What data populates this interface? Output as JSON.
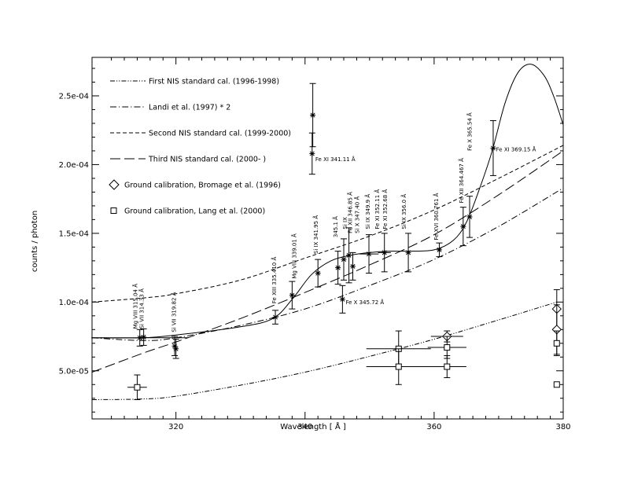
{
  "chart_data": {
    "type": "line",
    "title": "",
    "xlabel": "Wavelength [ Å ]",
    "ylabel": "counts / photon",
    "xlim": [
      307,
      380
    ],
    "ylim": [
      1.5e-05,
      0.000278
    ],
    "x_ticks": [
      {
        "value": 320,
        "label": "320"
      },
      {
        "value": 340,
        "label": "340"
      },
      {
        "value": 360,
        "label": "360"
      },
      {
        "value": 380,
        "label": "380"
      }
    ],
    "y_ticks": [
      {
        "value": 5e-05,
        "label": "5.0e-05"
      },
      {
        "value": 0.0001,
        "label": "1.0e-04"
      },
      {
        "value": 0.00015,
        "label": "1.5e-04"
      },
      {
        "value": 0.0002,
        "label": "2.0e-04"
      },
      {
        "value": 0.00025,
        "label": "2.5e-04"
      }
    ],
    "legend_position": "top-left",
    "legend": [
      {
        "label": "First NIS standard cal. (1996-1998)",
        "style": "dash-dot-dot"
      },
      {
        "label": "Landi et al. (1997) * 2",
        "style": "dash-dot"
      },
      {
        "label": "Second NIS standard cal. (1999-2000)",
        "style": "short-dash"
      },
      {
        "label": "Third NIS standard cal. (2000- )",
        "style": "long-dash"
      },
      {
        "label": "Ground calibration, Bromage et al. (1996)",
        "style": "diamond"
      },
      {
        "label": "Ground calibration, Lang et al. (2000)",
        "style": "square"
      }
    ],
    "series": [
      {
        "key": "first",
        "style": "dash-dot-dot",
        "x": [
          307,
          315,
          320,
          330,
          340,
          350,
          360,
          370,
          379
        ],
        "y": [
          2.9e-05,
          2.95e-05,
          3.15e-05,
          3.95e-05,
          4.9e-05,
          6.05e-05,
          7.3e-05,
          8.7e-05,
          0.0001
        ]
      },
      {
        "key": "landi",
        "style": "dash-dot",
        "x": [
          307,
          315,
          320,
          330,
          340,
          350,
          360,
          370,
          380
        ],
        "y": [
          7.4e-05,
          7.2e-05,
          7.4e-05,
          8.3e-05,
          9.5e-05,
          0.000112,
          0.000131,
          0.000155,
          0.000183
        ]
      },
      {
        "key": "second",
        "style": "short-dash",
        "x": [
          307,
          315,
          320,
          330,
          340,
          350,
          360,
          370,
          380
        ],
        "y": [
          0.0001,
          0.000103,
          0.000106,
          0.000116,
          0.000132,
          0.000148,
          0.000167,
          0.00019,
          0.000214
        ]
      },
      {
        "key": "third",
        "style": "long-dash",
        "x": [
          307,
          315,
          320,
          330,
          340,
          350,
          360,
          370,
          380
        ],
        "y": [
          4.9e-05,
          6.3e-05,
          7.1e-05,
          8.8e-05,
          0.000107,
          0.000127,
          0.000149,
          0.000178,
          0.00021
        ]
      },
      {
        "key": "fit",
        "style": "solid",
        "x": [
          307,
          315,
          320,
          330,
          335,
          338,
          341,
          344,
          347,
          350,
          353,
          356,
          360,
          363,
          365,
          367,
          369,
          371,
          373,
          375,
          377,
          378.5,
          380
        ],
        "y": [
          7.4e-05,
          7.4e-05,
          7.6e-05,
          8.2e-05,
          8.8e-05,
          0.000102,
          0.00012,
          0.00013,
          0.000134,
          0.000136,
          0.000137,
          0.000137,
          0.000138,
          0.000145,
          0.000158,
          0.000182,
          0.00021,
          0.000245,
          0.000267,
          0.000273,
          0.000265,
          0.00025,
          0.000229
        ]
      }
    ],
    "measurements": [
      {
        "x": 314.4,
        "y": 7.4e-05,
        "xerr": 7.5,
        "yerr": 6e-06
      },
      {
        "x": 315.0,
        "y": 7.45e-05,
        "xerr": 0,
        "yerr": 6e-06
      },
      {
        "x": 319.8,
        "y": 6.8e-05,
        "xerr": 0,
        "yerr": 7e-06
      },
      {
        "x": 320.0,
        "y": 6.6e-05,
        "xerr": 0,
        "yerr": 7e-06
      },
      {
        "x": 335.4,
        "y": 8.9e-05,
        "xerr": 0,
        "yerr": 5e-06
      },
      {
        "x": 338.0,
        "y": 0.000105,
        "xerr": 0,
        "yerr": 1e-05
      },
      {
        "x": 341.2,
        "y": 0.000236,
        "xerr": 0,
        "yerr": 2.3e-05
      },
      {
        "x": 341.1,
        "y": 0.000208,
        "xerr": 0,
        "yerr": 1.5e-05
      },
      {
        "x": 342.0,
        "y": 0.000121,
        "xerr": 0,
        "yerr": 1e-05
      },
      {
        "x": 345.1,
        "y": 0.000125,
        "xerr": 0,
        "yerr": 1.2e-05
      },
      {
        "x": 345.8,
        "y": 0.000102,
        "xerr": 0,
        "yerr": 1e-05
      },
      {
        "x": 346.0,
        "y": 0.000131,
        "xerr": 0,
        "yerr": 1.5e-05
      },
      {
        "x": 346.8,
        "y": 0.000134,
        "xerr": 0,
        "yerr": 2e-05
      },
      {
        "x": 347.4,
        "y": 0.000126,
        "xerr": 0,
        "yerr": 1e-05
      },
      {
        "x": 349.9,
        "y": 0.000135,
        "xerr": 1.5,
        "yerr": 1.4e-05
      },
      {
        "x": 352.3,
        "y": 0.000136,
        "xerr": 1.0,
        "yerr": 1.4e-05
      },
      {
        "x": 356.0,
        "y": 0.000136,
        "xerr": 0,
        "yerr": 1.4e-05
      },
      {
        "x": 360.8,
        "y": 0.000138,
        "xerr": 0,
        "yerr": 5e-06
      },
      {
        "x": 364.5,
        "y": 0.000155,
        "xerr": 0,
        "yerr": 1.4e-05
      },
      {
        "x": 365.5,
        "y": 0.000162,
        "xerr": 0,
        "yerr": 1.5e-05
      },
      {
        "x": 369.15,
        "y": 0.000212,
        "xerr": 0,
        "yerr": 2e-05
      }
    ],
    "bromage_points": [
      {
        "x": 362.0,
        "y": 7.5e-05,
        "xerr": 2.5,
        "yerr": 4e-06
      },
      {
        "x": 379.0,
        "y": 9.5e-05,
        "xerr": 0,
        "yerr": 1.4e-05
      },
      {
        "x": 379.0,
        "y": 8e-05,
        "xerr": 0,
        "yerr": 1.8e-05
      }
    ],
    "lang_points": [
      {
        "x": 314.0,
        "y": 3.8e-05,
        "xerr": 1.5,
        "yerr": 9e-06
      },
      {
        "x": 354.5,
        "y": 6.6e-05,
        "xerr": 5.0,
        "yerr": 1.3e-05
      },
      {
        "x": 354.5,
        "y": 5.3e-05,
        "xerr": 5.0,
        "yerr": 1.3e-05
      },
      {
        "x": 362.0,
        "y": 6.7e-05,
        "xerr": 3.0,
        "yerr": 8e-06
      },
      {
        "x": 362.0,
        "y": 5.3e-05,
        "xerr": 3.0,
        "yerr": 8e-06
      },
      {
        "x": 379.0,
        "y": 7e-05,
        "xerr": 0,
        "yerr": 9e-06
      },
      {
        "x": 379.0,
        "y": 4e-05,
        "xerr": 0,
        "yerr": 0
      }
    ],
    "line_labels": [
      {
        "text": "Si VII  314.33 Å",
        "x": 315.0,
        "y": 8.05e-05,
        "rotate": true
      },
      {
        "text": "Mg VIII 315.04 Å",
        "x": 314.0,
        "y": 8.05e-05,
        "rotate": true
      },
      {
        "text": "Si VII 319.82 Å",
        "x": 320.0,
        "y": 7.8e-05,
        "rotate": true
      },
      {
        "text": "Fe XIII 335.410 Å",
        "x": 335.5,
        "y": 9.9e-05,
        "rotate": true
      },
      {
        "text": "Mg VIII  339.01 Å",
        "x": 338.6,
        "y": 0.000117,
        "rotate": true
      },
      {
        "text": "Si IX  341.95 Å",
        "x": 342.0,
        "y": 0.000135,
        "rotate": true
      },
      {
        "text": "345.1 Å",
        "x": 345.0,
        "y": 0.000147,
        "rotate": true
      },
      {
        "text": "Si IX",
        "x": 346.5,
        "y": 0.000153,
        "rotate": true
      },
      {
        "text": "Fe XII  346.85 Å",
        "x": 347.3,
        "y": 0.00015,
        "rotate": true
      },
      {
        "text": "Si X  347.40 Å",
        "x": 348.4,
        "y": 0.00015,
        "rotate": true
      },
      {
        "text": "Si IX    349.9 Å",
        "x": 350.0,
        "y": 0.000153,
        "rotate": true
      },
      {
        "text": "Fe XI    352.11 Å",
        "x": 351.5,
        "y": 0.000153,
        "rotate": true
      },
      {
        "text": "Fe XI   352.68 Å",
        "x": 352.7,
        "y": 0.000153,
        "rotate": true
      },
      {
        "text": "Si IX    356.0 Å",
        "x": 355.6,
        "y": 0.000153,
        "rotate": true
      },
      {
        "text": "Fe XVI  360.761 Å",
        "x": 360.6,
        "y": 0.000145,
        "rotate": true
      },
      {
        "text": "Fe XII  364.467 Å",
        "x": 364.5,
        "y": 0.000172,
        "rotate": true
      },
      {
        "text": "Fe X   365.54 Å",
        "x": 365.8,
        "y": 0.00021,
        "rotate": true
      },
      {
        "text": "Fe XI 341.11 Å",
        "x": 341.6,
        "y": 0.000204,
        "rotate": false
      },
      {
        "text": "Fe X 345.72 Å",
        "x": 346.3,
        "y": 0.0001,
        "rotate": false
      },
      {
        "text": "Fe XI 369.15 Å",
        "x": 369.6,
        "y": 0.000211,
        "rotate": false
      }
    ]
  }
}
